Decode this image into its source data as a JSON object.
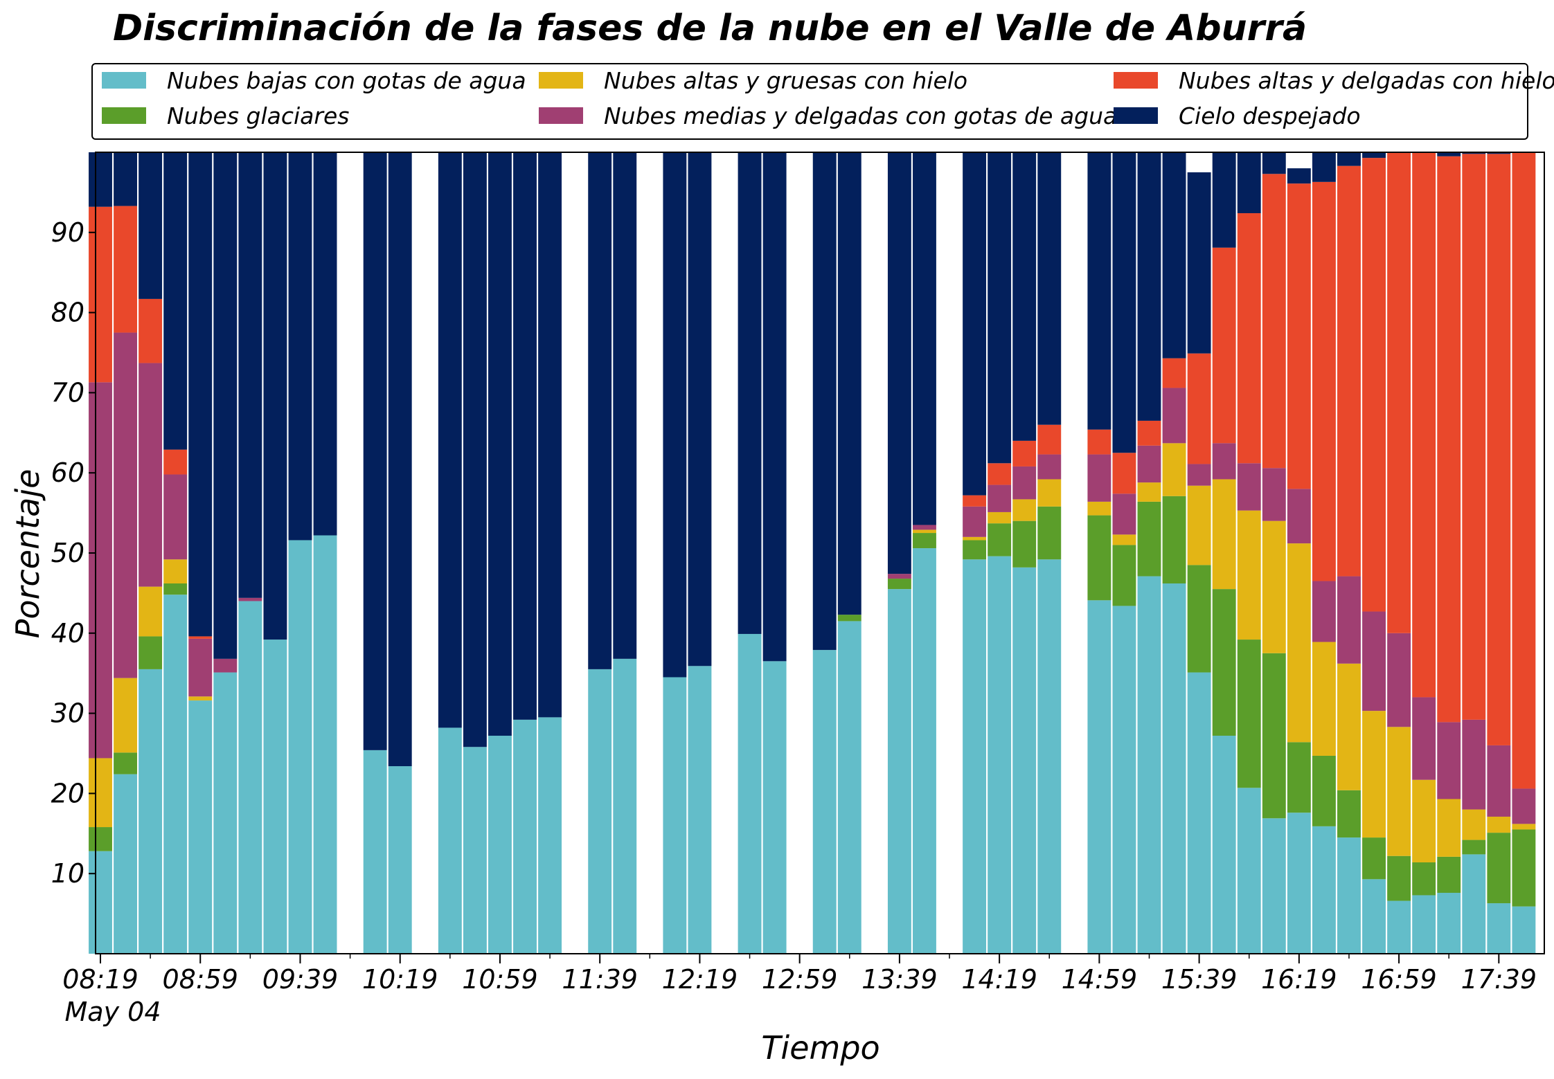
{
  "chart_data": {
    "type": "bar",
    "stacked": true,
    "title": "Discriminación de la fases de la nube en el Valle de Aburrá",
    "xlabel": "Tiempo",
    "ylabel": "Porcentaje",
    "ylim": [
      0,
      100
    ],
    "y_ticks": [
      10,
      20,
      30,
      40,
      50,
      60,
      70,
      80,
      90
    ],
    "x_tick_labels": [
      "08:19",
      "08:59",
      "09:39",
      "10:19",
      "10:59",
      "11:39",
      "12:19",
      "12:59",
      "13:39",
      "14:19",
      "14:59",
      "15:39",
      "16:19",
      "16:59",
      "17:39"
    ],
    "x_date_label": "May 04",
    "x_start_minutes": 499,
    "x_end_minutes": 1070,
    "x_step_minutes": 10,
    "grid": false,
    "legend_position": "top",
    "times": [
      "08:19",
      "08:29",
      "08:39",
      "08:49",
      "08:59",
      "09:09",
      "09:19",
      "09:29",
      "09:39",
      "09:49",
      "09:59",
      "10:09",
      "10:19",
      "10:29",
      "10:39",
      "10:49",
      "10:59",
      "11:09",
      "11:19",
      "11:29",
      "11:39",
      "11:49",
      "11:59",
      "12:09",
      "12:19",
      "12:29",
      "12:39",
      "12:49",
      "12:59",
      "13:09",
      "13:19",
      "13:29",
      "13:39",
      "13:49",
      "13:59",
      "14:09",
      "14:19",
      "14:29",
      "14:39",
      "14:49",
      "14:59",
      "15:09",
      "15:19",
      "15:29",
      "15:39",
      "15:49",
      "15:59",
      "16:09",
      "16:19",
      "16:29",
      "16:39",
      "16:49",
      "16:59",
      "17:09",
      "17:19",
      "17:29",
      "17:39",
      "17:49"
    ],
    "series": [
      {
        "name": "Nubes bajas con gotas de agua",
        "color": "#63BDC9",
        "values": [
          12.8,
          22.4,
          35.5,
          44.8,
          31.6,
          35.1,
          44.0,
          39.2,
          51.6,
          52.2,
          null,
          25.4,
          23.4,
          null,
          28.2,
          25.8,
          27.2,
          29.2,
          29.5,
          null,
          35.5,
          36.8,
          null,
          34.5,
          35.9,
          null,
          39.9,
          36.5,
          null,
          37.9,
          41.5,
          null,
          45.5,
          50.6,
          null,
          49.2,
          49.6,
          48.2,
          49.2,
          null,
          44.1,
          43.4,
          47.1,
          46.2,
          35.1,
          27.2,
          20.7,
          16.9,
          17.6,
          15.9,
          14.5,
          9.3,
          6.6,
          7.3,
          7.6,
          12.4,
          6.3,
          5.9
        ]
      },
      {
        "name": "Nubes glaciares",
        "color": "#5B9E2A",
        "values": [
          3.0,
          2.7,
          4.1,
          1.4,
          0,
          0,
          0,
          0,
          0,
          0,
          null,
          0,
          0,
          null,
          0,
          0,
          0,
          0,
          0,
          null,
          0,
          0,
          null,
          0,
          0,
          null,
          0,
          0,
          null,
          0,
          0.8,
          null,
          1.3,
          1.9,
          null,
          2.4,
          4.1,
          5.8,
          6.6,
          null,
          10.6,
          7.6,
          9.3,
          10.9,
          13.4,
          18.3,
          18.5,
          20.6,
          8.8,
          8.8,
          5.9,
          5.2,
          5.6,
          4.1,
          4.5,
          1.8,
          8.8,
          9.6
        ]
      },
      {
        "name": "Nubes altas y gruesas con hielo",
        "color": "#E3B515",
        "values": [
          8.6,
          9.3,
          6.2,
          3.0,
          0.5,
          0,
          0,
          0,
          0,
          0,
          null,
          0,
          0,
          null,
          0,
          0,
          0,
          0,
          0,
          null,
          0,
          0,
          null,
          0,
          0,
          null,
          0,
          0,
          null,
          0,
          0,
          null,
          0,
          0.4,
          null,
          0.4,
          1.4,
          2.7,
          3.4,
          null,
          1.7,
          1.3,
          2.4,
          6.6,
          9.9,
          13.7,
          16.1,
          16.5,
          24.8,
          14.2,
          15.8,
          15.8,
          16.1,
          10.3,
          7.2,
          3.8,
          2.0,
          0.7
        ]
      },
      {
        "name": "Nubes medias y delgadas con gotas de agua",
        "color": "#A03F72",
        "values": [
          46.9,
          43.1,
          27.9,
          10.6,
          7.2,
          1.7,
          0.4,
          0,
          0,
          0,
          null,
          0,
          0,
          null,
          0,
          0,
          0,
          0,
          0,
          null,
          0,
          0,
          null,
          0,
          0,
          null,
          0,
          0,
          null,
          0,
          0,
          null,
          0.6,
          0.6,
          null,
          3.8,
          3.4,
          4.1,
          3.1,
          null,
          5.9,
          5.1,
          4.6,
          6.9,
          2.7,
          4.5,
          5.9,
          6.6,
          6.8,
          7.6,
          10.9,
          12.4,
          11.7,
          10.3,
          9.6,
          11.2,
          8.9,
          4.4
        ]
      },
      {
        "name": "Nubes altas y delgadas con hielo",
        "color": "#E9482B",
        "values": [
          21.9,
          15.8,
          8.0,
          3.1,
          0.3,
          0,
          0,
          0,
          0,
          0,
          null,
          0,
          0,
          null,
          0,
          0,
          0,
          0,
          0,
          null,
          0,
          0,
          null,
          0,
          0,
          null,
          0,
          0,
          null,
          0,
          0,
          null,
          0,
          0,
          null,
          1.4,
          2.7,
          3.2,
          3.7,
          null,
          3.1,
          5.1,
          3.1,
          3.7,
          13.8,
          24.4,
          31.2,
          36.7,
          38.1,
          49.8,
          51.2,
          56.6,
          60.4,
          68.6,
          70.6,
          70.6,
          73.8,
          79.4
        ]
      },
      {
        "name": "Cielo despejado",
        "color": "#03205C",
        "values": [
          6.8,
          6.7,
          18.3,
          37.1,
          60.4,
          63.2,
          55.6,
          60.8,
          48.4,
          47.8,
          null,
          74.6,
          76.6,
          null,
          71.8,
          74.2,
          72.8,
          70.8,
          70.5,
          null,
          64.5,
          63.2,
          null,
          65.5,
          64.1,
          null,
          60.1,
          63.5,
          null,
          62.1,
          57.7,
          null,
          52.6,
          46.5,
          null,
          42.8,
          38.8,
          36.0,
          34.0,
          null,
          34.6,
          37.5,
          33.5,
          25.7,
          22.6,
          11.9,
          7.6,
          2.7,
          1.9,
          3.7,
          1.7,
          0.7,
          0.4,
          0.4,
          0.5,
          0.2,
          0.2,
          0
        ]
      }
    ]
  }
}
